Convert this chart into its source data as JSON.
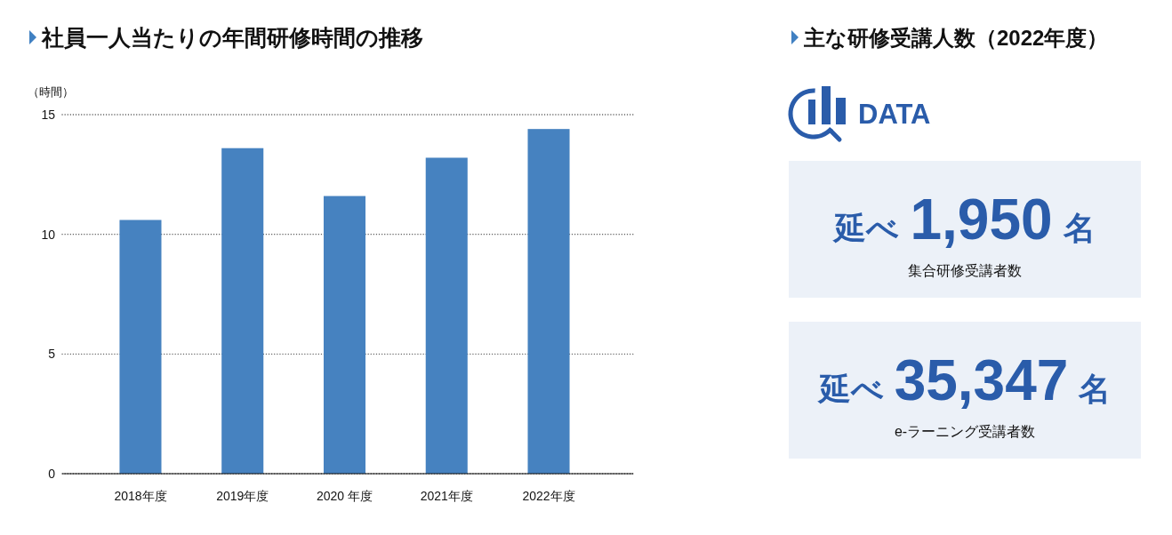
{
  "chart_data": [
    {
      "type": "bar",
      "title": "社員一人当たりの年間研修時間の推移",
      "ylabel": "（時間）",
      "categories": [
        "2018年度",
        "2019年度",
        "2020 年度",
        "2021年度",
        "2022年度"
      ],
      "values": [
        10.6,
        13.6,
        11.6,
        13.2,
        14.4
      ],
      "color": "#4682c0",
      "ylim": [
        0,
        15
      ],
      "yticks": [
        0,
        5,
        10,
        15
      ],
      "grid": "y"
    },
    {
      "type": "other",
      "title": "主な研修受講人数（2022年度）",
      "annotations": [
        "DATA",
        "延べ",
        "1,950",
        "名",
        "集合研修受講者数",
        "延べ",
        "35,347",
        "名",
        "e-ラーニング受講者数"
      ]
    }
  ]
}
